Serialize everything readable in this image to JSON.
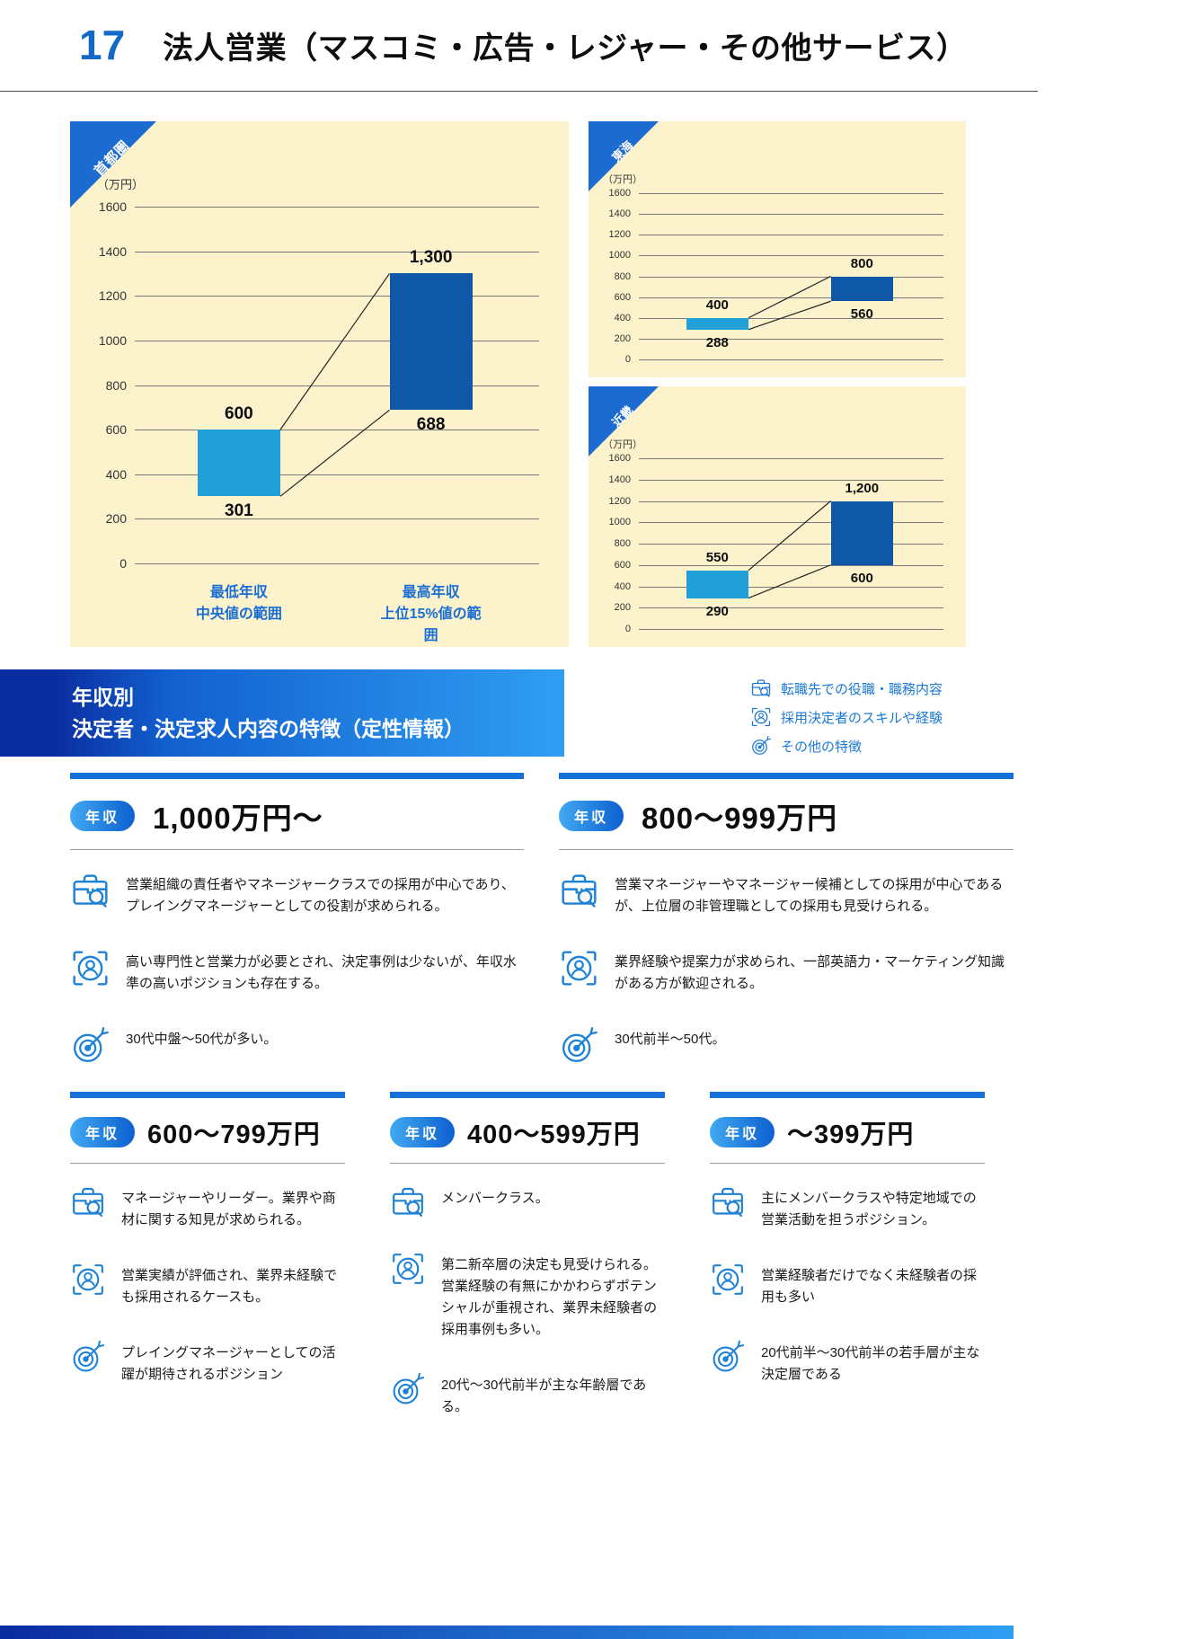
{
  "page": {
    "number": "17",
    "title": "法人営業（マスコミ・広告・レジャー・その他サービス）"
  },
  "colors": {
    "accent_blue": "#1468c8",
    "bar_low": "#219fd7",
    "bar_high": "#0f57a7",
    "chart_bg": "#fcf3cd",
    "badge_blue": "#1c6bd0",
    "banner_dark": "#0a2da0",
    "banner_light": "#2f9ef2",
    "legend_text": "#1b79d6"
  },
  "chart_data": [
    {
      "type": "bar",
      "region": "首都圏",
      "unit": "（万円）",
      "ylim": [
        0,
        1600
      ],
      "ytick_step": 200,
      "bars": [
        {
          "label": "最低年収\n中央値の範囲",
          "min": 301,
          "max": 600,
          "min_text": "301",
          "max_text": "600"
        },
        {
          "label": "最高年収\n上位15%値の範囲",
          "min": 688,
          "max": 1300,
          "min_text": "688",
          "max_text": "1,300"
        }
      ]
    },
    {
      "type": "bar",
      "region": "東海",
      "unit": "（万円）",
      "ylim": [
        0,
        1600
      ],
      "ytick_step": 200,
      "bars": [
        {
          "min": 288,
          "max": 400,
          "min_text": "288",
          "max_text": "400"
        },
        {
          "min": 560,
          "max": 800,
          "min_text": "560",
          "max_text": "800"
        }
      ]
    },
    {
      "type": "bar",
      "region": "近畿",
      "unit": "（万円）",
      "ylim": [
        0,
        1600
      ],
      "ytick_step": 200,
      "bars": [
        {
          "min": 290,
          "max": 550,
          "min_text": "290",
          "max_text": "550"
        },
        {
          "min": 600,
          "max": 1200,
          "min_text": "600",
          "max_text": "1,200"
        }
      ]
    }
  ],
  "banner": {
    "line1": "年収別",
    "line2": "決定者・決定求人内容の特徴（定性情報）"
  },
  "legend": {
    "items": [
      {
        "icon": "briefcase-search-icon",
        "label": "転職先での役職・職務内容"
      },
      {
        "icon": "hired-person-icon",
        "label": "採用決定者のスキルや経験"
      },
      {
        "icon": "target-arrow-icon",
        "label": "その他の特徴"
      }
    ]
  },
  "sections": [
    {
      "badge": "年収",
      "range": "1,000万円～",
      "items": [
        {
          "icon": "briefcase-search-icon",
          "text": "営業組織の責任者やマネージャークラスでの採用が中心であり、プレイングマネージャーとしての役割が求められる。"
        },
        {
          "icon": "hired-person-icon",
          "text": "高い専門性と営業力が必要とされ、決定事例は少ないが、年収水準の高いポジションも存在する。"
        },
        {
          "icon": "target-arrow-icon",
          "text": "30代中盤～50代が多い。"
        }
      ]
    },
    {
      "badge": "年収",
      "range": "800～999万円",
      "items": [
        {
          "icon": "briefcase-search-icon",
          "text": "営業マネージャーやマネージャー候補としての採用が中心であるが、上位層の非管理職としての採用も見受けられる。"
        },
        {
          "icon": "hired-person-icon",
          "text": "業界経験や提案力が求められ、一部英語力・マーケティング知識がある方が歓迎される。"
        },
        {
          "icon": "target-arrow-icon",
          "text": "30代前半～50代。"
        }
      ]
    },
    {
      "badge": "年収",
      "range": "600～799万円",
      "items": [
        {
          "icon": "briefcase-search-icon",
          "text": "マネージャーやリーダー。業界や商材に関する知見が求められる。"
        },
        {
          "icon": "hired-person-icon",
          "text": "営業実績が評価され、業界未経験でも採用されるケースも。"
        },
        {
          "icon": "target-arrow-icon",
          "text": "プレイングマネージャーとしての活躍が期待されるポジション"
        }
      ]
    },
    {
      "badge": "年収",
      "range": "400～599万円",
      "items": [
        {
          "icon": "briefcase-search-icon",
          "text": "メンバークラス。"
        },
        {
          "icon": "hired-person-icon",
          "text": "第二新卒層の決定も見受けられる。営業経験の有無にかかわらずポテンシャルが重視され、業界未経験者の採用事例も多い。"
        },
        {
          "icon": "target-arrow-icon",
          "text": "20代～30代前半が主な年齢層である。"
        }
      ]
    },
    {
      "badge": "年収",
      "range": "～399万円",
      "items": [
        {
          "icon": "briefcase-search-icon",
          "text": "主にメンバークラスや特定地域での営業活動を担うポジション。"
        },
        {
          "icon": "hired-person-icon",
          "text": "営業経験者だけでなく未経験者の採用も多い"
        },
        {
          "icon": "target-arrow-icon",
          "text": "20代前半～30代前半の若手層が主な決定層である"
        }
      ]
    }
  ]
}
